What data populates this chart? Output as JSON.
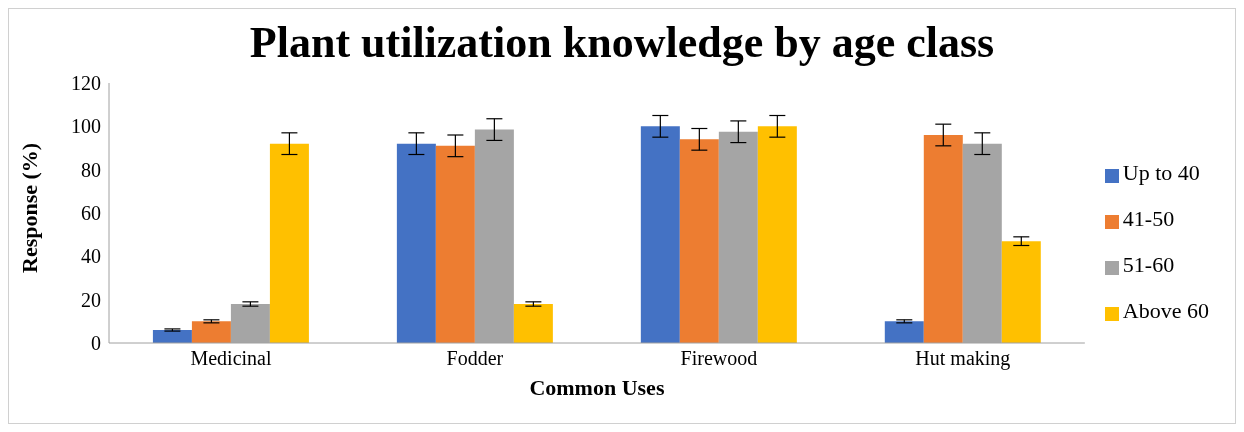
{
  "chart_data": {
    "type": "bar",
    "title": "Plant utilization knowledge by age class",
    "xlabel": "Common Uses",
    "ylabel": "Response (%)",
    "categories": [
      "Medicinal",
      "Fodder",
      "Firewood",
      "Hut making"
    ],
    "series": [
      {
        "name": "Up to 40",
        "color": "#4472c4",
        "values": [
          6,
          92,
          100,
          10
        ],
        "errors": [
          0.5,
          5,
          5,
          0.7
        ]
      },
      {
        "name": "41-50",
        "color": "#ed7d31",
        "values": [
          10,
          91,
          94,
          96
        ],
        "errors": [
          0.7,
          5,
          5,
          5
        ]
      },
      {
        "name": "51-60",
        "color": "#a5a5a5",
        "values": [
          18,
          98.5,
          97.5,
          92
        ],
        "errors": [
          1,
          5,
          5,
          5
        ]
      },
      {
        "name": "Above 60",
        "color": "#ffc000",
        "values": [
          92,
          18,
          100,
          47
        ],
        "errors": [
          5,
          1,
          5,
          2
        ]
      }
    ],
    "ylim": [
      0,
      120
    ],
    "yticks": [
      0,
      20,
      40,
      60,
      80,
      100,
      120
    ],
    "grid": false,
    "legend": "right"
  }
}
